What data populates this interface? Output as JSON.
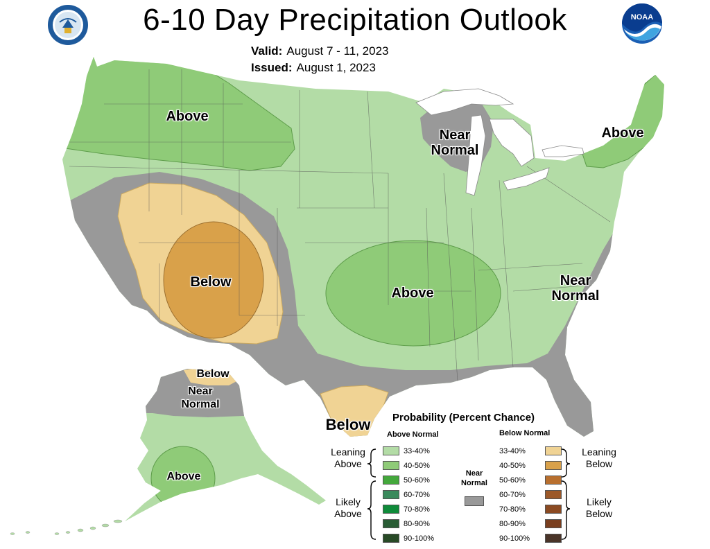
{
  "title": "6-10 Day Precipitation Outlook",
  "valid_label": "Valid:",
  "valid_value": "August 7 - 11, 2023",
  "issued_label": "Issued:",
  "issued_value": "August 1, 2023",
  "logos": {
    "left": "seal-icon",
    "right": "noaa-logo-icon",
    "noaa_text": "NOAA"
  },
  "map_labels": {
    "northwest": "Above",
    "great_lakes_1": "Near",
    "great_lakes_2": "Normal",
    "new_england": "Above",
    "southwest": "Below",
    "central": "Above",
    "east_coast_1": "Near",
    "east_coast_2": "Normal",
    "south_texas": "Below",
    "alaska_north": "Below",
    "alaska_near_1": "Near",
    "alaska_near_2": "Normal",
    "alaska_south": "Above"
  },
  "legend": {
    "title": "Probability (Percent Chance)",
    "above_header": "Above Normal",
    "below_header": "Below Normal",
    "near_header_1": "Near",
    "near_header_2": "Normal",
    "leaning_above_1": "Leaning",
    "leaning_above_2": "Above",
    "likely_above_1": "Likely",
    "likely_above_2": "Above",
    "leaning_below_1": "Leaning",
    "leaning_below_2": "Below",
    "likely_below_1": "Likely",
    "likely_below_2": "Below",
    "above": [
      {
        "label": "33-40%",
        "color": "#b3dca6"
      },
      {
        "label": "40-50%",
        "color": "#8fcb78"
      },
      {
        "label": "50-60%",
        "color": "#44a83c"
      },
      {
        "label": "60-70%",
        "color": "#3a8a5c"
      },
      {
        "label": "70-80%",
        "color": "#0f8b3a"
      },
      {
        "label": "80-90%",
        "color": "#285c34"
      },
      {
        "label": "90-100%",
        "color": "#284a26"
      }
    ],
    "below": [
      {
        "label": "33-40%",
        "color": "#f0d394"
      },
      {
        "label": "40-50%",
        "color": "#d9a14a"
      },
      {
        "label": "50-60%",
        "color": "#b86f2e"
      },
      {
        "label": "60-70%",
        "color": "#9c5828"
      },
      {
        "label": "70-80%",
        "color": "#8b4a22"
      },
      {
        "label": "80-90%",
        "color": "#7a3e1e"
      },
      {
        "label": "90-100%",
        "color": "#4a3428"
      }
    ],
    "near_color": "#999999"
  },
  "colors": {
    "leaning_above": "#b3dca6",
    "above_40_50": "#8fcb78",
    "leaning_below": "#f0d394",
    "below_40_50": "#d9a14a",
    "near_normal": "#999999",
    "water": "#ffffff"
  }
}
